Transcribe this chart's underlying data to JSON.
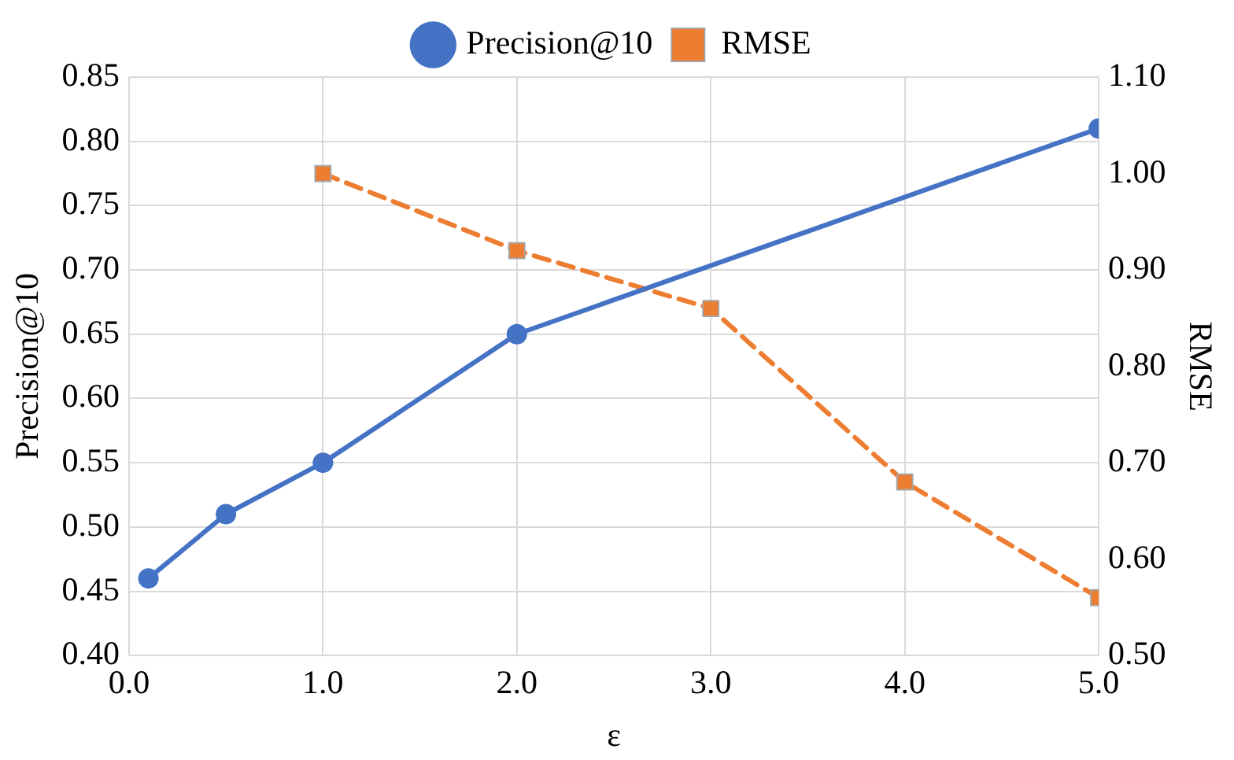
{
  "chart_data": {
    "type": "line",
    "xlabel": "ε",
    "ylabel": "Precision@10",
    "y2label": "RMSE",
    "series": [
      {
        "name": "Precision@10",
        "color": "#4472c4",
        "x": [
          0.1,
          0.5,
          1.0,
          2.0,
          5.0
        ],
        "values": [
          0.46,
          0.51,
          0.55,
          0.65,
          0.81
        ],
        "marker": "circle",
        "line_style": "solid"
      },
      {
        "name": "RMSE",
        "color": "#ed7d31",
        "axis": "y2",
        "x": [
          1.0,
          2.0,
          3.0,
          4.0,
          5.0
        ],
        "values": [
          1.0,
          0.92,
          0.86,
          0.68,
          0.56
        ],
        "marker": "square",
        "line_style": "dashed"
      }
    ],
    "xlim": [
      0,
      5
    ],
    "xticks": [
      {
        "value": 0,
        "label": "0.0"
      },
      {
        "value": 1,
        "label": "1.0"
      },
      {
        "value": 2,
        "label": "2.0"
      },
      {
        "value": 3,
        "label": "3.0"
      },
      {
        "value": 4,
        "label": "4.0"
      },
      {
        "value": 5,
        "label": "5.0"
      }
    ],
    "ylim": [
      0.4,
      0.85
    ],
    "yticks": [
      {
        "value": 0.4,
        "label": "0.40"
      },
      {
        "value": 0.45,
        "label": "0.45"
      },
      {
        "value": 0.5,
        "label": "0.50"
      },
      {
        "value": 0.55,
        "label": "0.55"
      },
      {
        "value": 0.6,
        "label": "0.60"
      },
      {
        "value": 0.65,
        "label": "0.65"
      },
      {
        "value": 0.7,
        "label": "0.70"
      },
      {
        "value": 0.75,
        "label": "0.75"
      },
      {
        "value": 0.8,
        "label": "0.80"
      },
      {
        "value": 0.85,
        "label": "0.85"
      }
    ],
    "y2lim": [
      0.5,
      1.1
    ],
    "y2ticks": [
      {
        "value": 0.5,
        "label": "0.50"
      },
      {
        "value": 0.6,
        "label": "0.60"
      },
      {
        "value": 0.7,
        "label": "0.70"
      },
      {
        "value": 0.8,
        "label": "0.80"
      },
      {
        "value": 0.9,
        "label": "0.90"
      },
      {
        "value": 1.0,
        "label": "1.00"
      },
      {
        "value": 1.1,
        "label": "1.10"
      }
    ],
    "grid": true,
    "legend": "top"
  }
}
